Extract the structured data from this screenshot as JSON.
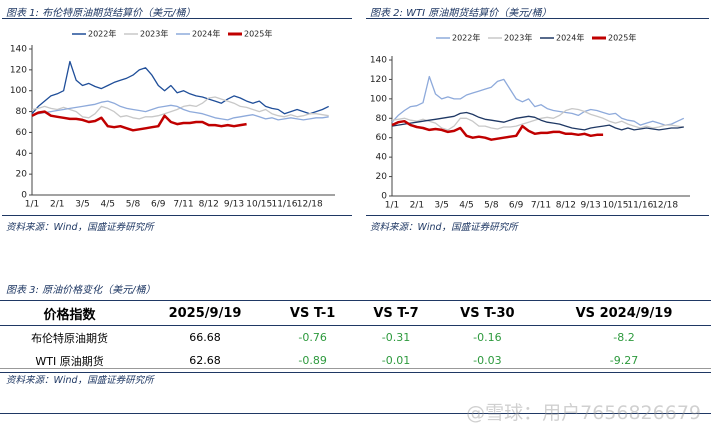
{
  "chart_data": [
    {
      "type": "line",
      "title": "图表 1:  布伦特原油期货结算价（美元/桶）",
      "categories": [
        "1/1",
        null,
        null,
        null,
        "2/1",
        null,
        null,
        null,
        "3/5",
        null,
        null,
        null,
        "4/5",
        null,
        null,
        null,
        "5/8",
        null,
        null,
        null,
        "6/9",
        null,
        null,
        null,
        "7/11",
        null,
        null,
        null,
        "8/12",
        null,
        null,
        null,
        "9/13",
        null,
        null,
        null,
        "10/15",
        null,
        null,
        null,
        "11/16",
        null,
        null,
        null,
        "12/18",
        null,
        null,
        null
      ],
      "ylim": [
        0,
        140
      ],
      "yticks": [
        0,
        20,
        40,
        60,
        80,
        100,
        120,
        140
      ],
      "series": [
        {
          "name": "2022年",
          "color": "#1f4e99",
          "values": [
            78,
            85,
            90,
            95,
            97,
            100,
            128,
            110,
            105,
            107,
            104,
            102,
            105,
            108,
            110,
            112,
            115,
            120,
            122,
            115,
            105,
            100,
            105,
            98,
            100,
            97,
            95,
            94,
            92,
            90,
            88,
            92,
            95,
            93,
            90,
            88,
            90,
            85,
            83,
            82,
            78,
            80,
            82,
            80,
            78,
            80,
            82,
            85
          ]
        },
        {
          "name": "2023年",
          "color": "#c8c8c8",
          "values": [
            82,
            83,
            85,
            83,
            82,
            84,
            82,
            80,
            75,
            74,
            78,
            85,
            83,
            80,
            75,
            76,
            74,
            73,
            75,
            75,
            76,
            78,
            80,
            82,
            85,
            86,
            85,
            88,
            93,
            94,
            92,
            90,
            88,
            85,
            84,
            82,
            80,
            82,
            78,
            76,
            75,
            77,
            75,
            76,
            78,
            78,
            77,
            76
          ]
        },
        {
          "name": "2024年",
          "color": "#8eaadb",
          "values": [
            77,
            78,
            79,
            80,
            81,
            82,
            83,
            84,
            85,
            86,
            87,
            89,
            90,
            88,
            85,
            83,
            82,
            81,
            80,
            82,
            84,
            85,
            86,
            85,
            82,
            80,
            79,
            78,
            76,
            74,
            73,
            72,
            74,
            75,
            76,
            77,
            75,
            73,
            74,
            72,
            73,
            74,
            73,
            72,
            73,
            74,
            74,
            75
          ]
        },
        {
          "name": "2025年",
          "color": "#c00000",
          "values": [
            76,
            79,
            80,
            76,
            75,
            74,
            73,
            73,
            72,
            70,
            71,
            74,
            66,
            65,
            66,
            64,
            62,
            63,
            64,
            65,
            66,
            76,
            70,
            68,
            69,
            69,
            70,
            70,
            67,
            67,
            66,
            67,
            66,
            67,
            68,
            null,
            null,
            null,
            null,
            null,
            null,
            null,
            null,
            null,
            null,
            null,
            null,
            null
          ]
        }
      ],
      "source": "资料来源：Wind，国盛证券研究所"
    },
    {
      "type": "line",
      "title": "图表 2:  WTI 原油期货结算价（美元/桶）",
      "categories": [
        "1/1",
        null,
        null,
        null,
        "2/1",
        null,
        null,
        null,
        "3/5",
        null,
        null,
        null,
        "4/5",
        null,
        null,
        null,
        "5/8",
        null,
        null,
        null,
        "6/9",
        null,
        null,
        null,
        "7/11",
        null,
        null,
        null,
        "8/12",
        null,
        null,
        null,
        "9/13",
        null,
        null,
        null,
        "10/15",
        null,
        null,
        null,
        "11/16",
        null,
        null,
        null,
        "12/18",
        null,
        null,
        null
      ],
      "ylim": [
        0,
        140
      ],
      "yticks": [
        0,
        20,
        40,
        60,
        80,
        100,
        120,
        140
      ],
      "series": [
        {
          "name": "2022年",
          "color": "#8eaadb",
          "values": [
            76,
            83,
            88,
            92,
            93,
            96,
            123,
            105,
            100,
            102,
            100,
            100,
            104,
            106,
            108,
            110,
            112,
            118,
            120,
            110,
            100,
            97,
            100,
            92,
            94,
            90,
            88,
            87,
            86,
            85,
            83,
            87,
            89,
            88,
            86,
            84,
            85,
            80,
            78,
            77,
            73,
            75,
            77,
            75,
            73,
            74,
            77,
            80
          ]
        },
        {
          "name": "2023年",
          "color": "#c8c8c8",
          "values": [
            78,
            79,
            80,
            78,
            77,
            79,
            77,
            75,
            70,
            68,
            72,
            80,
            80,
            77,
            72,
            72,
            70,
            69,
            71,
            71,
            72,
            74,
            76,
            78,
            80,
            81,
            80,
            83,
            88,
            90,
            89,
            87,
            84,
            82,
            80,
            77,
            75,
            77,
            74,
            72,
            70,
            72,
            70,
            71,
            73,
            73,
            72,
            71
          ]
        },
        {
          "name": "2024年",
          "color": "#1f3864",
          "values": [
            72,
            73,
            74,
            75,
            76,
            77,
            78,
            79,
            80,
            81,
            82,
            85,
            86,
            84,
            81,
            79,
            78,
            77,
            76,
            78,
            80,
            81,
            82,
            81,
            78,
            76,
            75,
            74,
            72,
            70,
            69,
            68,
            70,
            71,
            72,
            73,
            70,
            68,
            70,
            68,
            69,
            70,
            69,
            68,
            69,
            70,
            70,
            71
          ]
        },
        {
          "name": "2025年",
          "color": "#c00000",
          "values": [
            73,
            76,
            77,
            73,
            71,
            70,
            68,
            69,
            68,
            66,
            67,
            70,
            62,
            60,
            61,
            60,
            58,
            59,
            60,
            61,
            62,
            72,
            67,
            64,
            65,
            65,
            66,
            66,
            64,
            64,
            63,
            64,
            62,
            63,
            63,
            null,
            null,
            null,
            null,
            null,
            null,
            null,
            null,
            null,
            null,
            null,
            null,
            null
          ]
        }
      ],
      "source": "资料来源：Wind，国盛证券研究所"
    }
  ],
  "table": {
    "title": "图表 3:  原油价格变化（美元/桶）",
    "header": [
      "价格指数",
      "2025/9/19",
      "VS T-1",
      "VS T-7",
      "VS T-30",
      "VS 2024/9/19"
    ],
    "rows": [
      [
        "布伦特原油期货",
        "66.68",
        "-0.76",
        "-0.31",
        "-0.16",
        "-8.2"
      ],
      [
        "WTI 原油期货",
        "62.68",
        "-0.89",
        "-0.01",
        "-0.03",
        "-9.27"
      ]
    ],
    "source": "资料来源：Wind，国盛证券研究所"
  },
  "watermark": "@雪球：用户7656826679"
}
